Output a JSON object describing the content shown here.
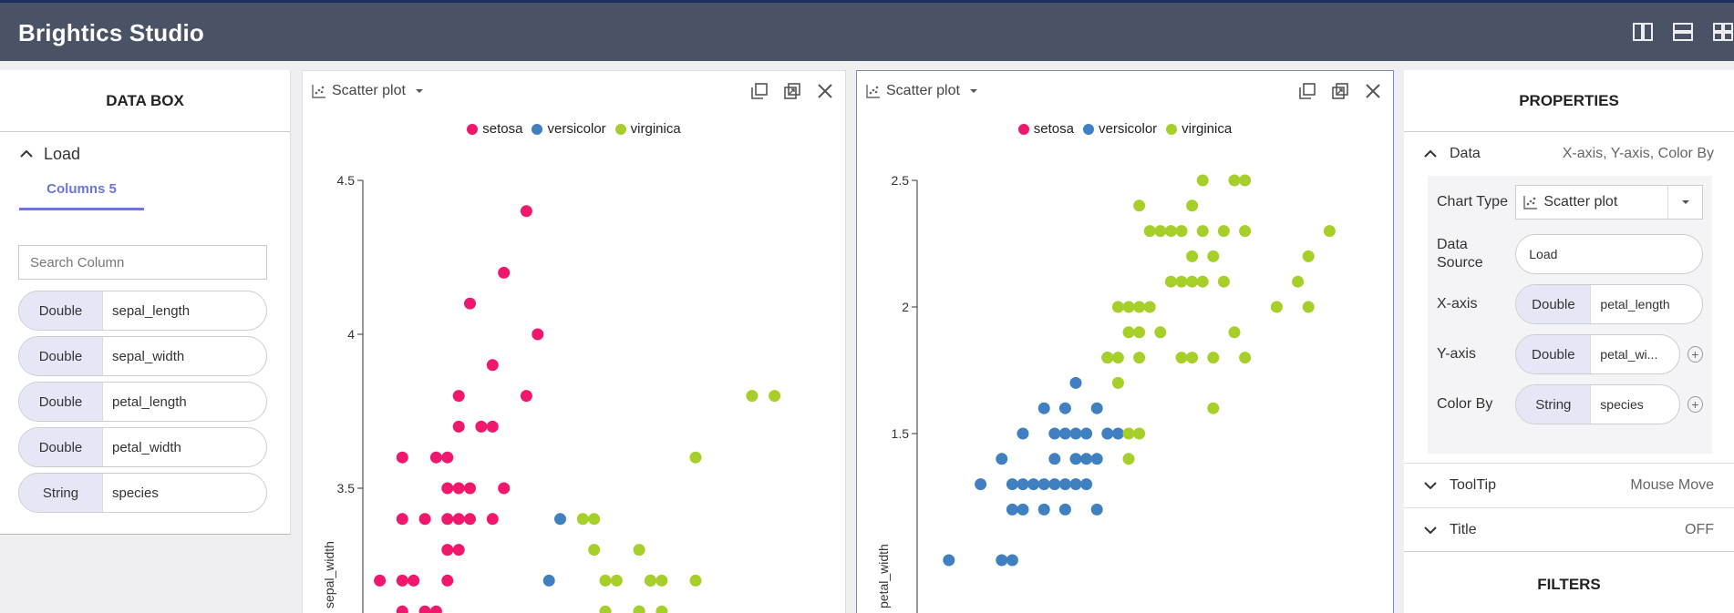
{
  "app": {
    "title": "Brightics Studio"
  },
  "colors": {
    "setosa": "#f0186c",
    "versicolor": "#4080c0",
    "virginica": "#a6cf2a",
    "accent": "#6b76d8"
  },
  "databox": {
    "title": "DATA BOX",
    "source": "Load",
    "tab": "Columns 5",
    "search_placeholder": "Search Column",
    "columns": [
      {
        "type": "Double",
        "name": "sepal_length"
      },
      {
        "type": "Double",
        "name": "sepal_width"
      },
      {
        "type": "Double",
        "name": "petal_length"
      },
      {
        "type": "Double",
        "name": "petal_width"
      },
      {
        "type": "String",
        "name": "species"
      }
    ]
  },
  "charts": [
    {
      "type_label": "Scatter plot",
      "legend": [
        "setosa",
        "versicolor",
        "virginica"
      ]
    },
    {
      "type_label": "Scatter plot",
      "legend": [
        "setosa",
        "versicolor",
        "virginica"
      ]
    }
  ],
  "chart_data": [
    {
      "type": "scatter",
      "title": "",
      "xlabel": "",
      "ylabel": "sepal_width",
      "yticks": [
        3.5,
        4,
        4.5
      ],
      "ylim": [
        3.05,
        4.5
      ],
      "xlim": [
        4.25,
        8.0
      ],
      "series": [
        {
          "name": "setosa",
          "points": [
            [
              5.7,
              4.4
            ],
            [
              5.5,
              4.2
            ],
            [
              5.2,
              4.1
            ],
            [
              5.8,
              4.0
            ],
            [
              5.4,
              3.9
            ],
            [
              5.1,
              3.8
            ],
            [
              5.7,
              3.8
            ],
            [
              5.1,
              3.7
            ],
            [
              5.3,
              3.7
            ],
            [
              5.4,
              3.7
            ],
            [
              4.6,
              3.6
            ],
            [
              4.9,
              3.6
            ],
            [
              5.0,
              3.6
            ],
            [
              5.0,
              3.5
            ],
            [
              5.1,
              3.5
            ],
            [
              5.2,
              3.5
            ],
            [
              5.5,
              3.5
            ],
            [
              4.6,
              3.4
            ],
            [
              4.8,
              3.4
            ],
            [
              5.0,
              3.4
            ],
            [
              5.1,
              3.4
            ],
            [
              5.2,
              3.4
            ],
            [
              5.4,
              3.4
            ],
            [
              5.0,
              3.3
            ],
            [
              5.1,
              3.3
            ],
            [
              4.4,
              3.2
            ],
            [
              4.6,
              3.2
            ],
            [
              4.7,
              3.2
            ],
            [
              5.0,
              3.2
            ],
            [
              4.6,
              3.1
            ],
            [
              4.8,
              3.1
            ],
            [
              4.9,
              3.1
            ]
          ]
        },
        {
          "name": "versicolor",
          "points": [
            [
              6.0,
              3.4
            ],
            [
              5.9,
              3.2
            ],
            [
              6.8,
              3.2
            ],
            [
              6.7,
              3.1
            ]
          ]
        },
        {
          "name": "virginica",
          "points": [
            [
              7.7,
              3.8
            ],
            [
              7.9,
              3.8
            ],
            [
              7.2,
              3.6
            ],
            [
              6.2,
              3.4
            ],
            [
              6.3,
              3.4
            ],
            [
              6.3,
              3.3
            ],
            [
              6.7,
              3.3
            ],
            [
              6.4,
              3.2
            ],
            [
              6.5,
              3.2
            ],
            [
              6.8,
              3.2
            ],
            [
              6.9,
              3.2
            ],
            [
              7.2,
              3.2
            ],
            [
              6.4,
              3.1
            ],
            [
              6.7,
              3.1
            ],
            [
              6.9,
              3.1
            ]
          ]
        }
      ]
    },
    {
      "type": "scatter",
      "title": "",
      "xlabel": "",
      "ylabel": "petal_width",
      "yticks": [
        1.5,
        2,
        2.5
      ],
      "ylim": [
        1.05,
        2.5
      ],
      "xlim": [
        3.0,
        7.0
      ],
      "series": [
        {
          "name": "setosa",
          "points": []
        },
        {
          "name": "versicolor",
          "points": [
            [
              4.8,
              1.8
            ],
            [
              4.5,
              1.7
            ],
            [
              4.2,
              1.6
            ],
            [
              4.4,
              1.6
            ],
            [
              4.7,
              1.6
            ],
            [
              4.0,
              1.5
            ],
            [
              4.3,
              1.5
            ],
            [
              4.4,
              1.5
            ],
            [
              4.5,
              1.5
            ],
            [
              4.6,
              1.5
            ],
            [
              4.8,
              1.5
            ],
            [
              4.9,
              1.5
            ],
            [
              3.8,
              1.4
            ],
            [
              4.3,
              1.4
            ],
            [
              4.5,
              1.4
            ],
            [
              4.6,
              1.4
            ],
            [
              4.7,
              1.4
            ],
            [
              3.6,
              1.3
            ],
            [
              3.9,
              1.3
            ],
            [
              4.0,
              1.3
            ],
            [
              4.1,
              1.3
            ],
            [
              4.2,
              1.3
            ],
            [
              4.3,
              1.3
            ],
            [
              4.4,
              1.3
            ],
            [
              4.5,
              1.3
            ],
            [
              4.6,
              1.3
            ],
            [
              3.9,
              1.2
            ],
            [
              4.0,
              1.2
            ],
            [
              4.2,
              1.2
            ],
            [
              4.4,
              1.2
            ],
            [
              4.7,
              1.2
            ],
            [
              3.3,
              1.0
            ],
            [
              3.8,
              1.0
            ],
            [
              3.9,
              1.0
            ]
          ]
        },
        {
          "name": "virginica",
          "points": [
            [
              5.7,
              2.5
            ],
            [
              6.0,
              2.5
            ],
            [
              6.1,
              2.5
            ],
            [
              5.1,
              2.4
            ],
            [
              5.6,
              2.4
            ],
            [
              5.2,
              2.3
            ],
            [
              5.3,
              2.3
            ],
            [
              5.4,
              2.3
            ],
            [
              5.5,
              2.3
            ],
            [
              5.7,
              2.3
            ],
            [
              5.9,
              2.3
            ],
            [
              6.1,
              2.3
            ],
            [
              6.9,
              2.3
            ],
            [
              5.6,
              2.2
            ],
            [
              5.8,
              2.2
            ],
            [
              6.7,
              2.2
            ],
            [
              5.4,
              2.1
            ],
            [
              5.5,
              2.1
            ],
            [
              5.6,
              2.1
            ],
            [
              5.7,
              2.1
            ],
            [
              5.9,
              2.1
            ],
            [
              6.6,
              2.1
            ],
            [
              4.9,
              2.0
            ],
            [
              5.0,
              2.0
            ],
            [
              5.1,
              2.0
            ],
            [
              5.2,
              2.0
            ],
            [
              6.4,
              2.0
            ],
            [
              6.7,
              2.0
            ],
            [
              5.0,
              1.9
            ],
            [
              5.1,
              1.9
            ],
            [
              5.3,
              1.9
            ],
            [
              6.0,
              1.9
            ],
            [
              4.8,
              1.8
            ],
            [
              4.9,
              1.8
            ],
            [
              5.1,
              1.8
            ],
            [
              5.5,
              1.8
            ],
            [
              5.6,
              1.8
            ],
            [
              5.8,
              1.8
            ],
            [
              6.1,
              1.8
            ],
            [
              4.9,
              1.7
            ],
            [
              5.1,
              1.5
            ],
            [
              5.0,
              1.5
            ],
            [
              5.8,
              1.6
            ],
            [
              5.0,
              1.4
            ]
          ]
        }
      ]
    }
  ],
  "properties": {
    "title": "PROPERTIES",
    "data_section": {
      "label": "Data",
      "summary": "X-axis, Y-axis, Color By"
    },
    "chart_type": {
      "label": "Chart Type",
      "value": "Scatter plot"
    },
    "data_source": {
      "label": "Data Source",
      "value": "Load"
    },
    "x_axis": {
      "label": "X-axis",
      "type": "Double",
      "value": "petal_length"
    },
    "y_axis": {
      "label": "Y-axis",
      "type": "Double",
      "value": "petal_wi..."
    },
    "color_by": {
      "label": "Color By",
      "type": "String",
      "value": "species"
    },
    "tooltip": {
      "label": "ToolTip",
      "summary": "Mouse Move"
    },
    "title_section": {
      "label": "Title",
      "summary": "OFF"
    },
    "filters": "FILTERS"
  }
}
